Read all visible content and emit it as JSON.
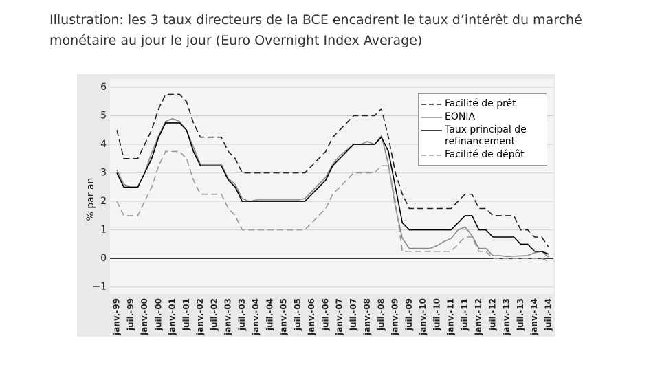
{
  "chart_data": {
    "type": "line",
    "title": "Illustration: les 3 taux directeurs de la BCE encadrent le taux d’intérêt du marché monétaire au jour le jour (Euro Overnight Index Average)",
    "ylabel": "% par an",
    "categories": [
      "janv.-99",
      null,
      "juil.-99",
      null,
      "janv.-00",
      null,
      "juil.-00",
      null,
      "janv.-01",
      null,
      "juil.-01",
      null,
      "janv.-02",
      null,
      "juil.-02",
      null,
      "janv.-03",
      null,
      "juil.-03",
      null,
      "janv.-04",
      null,
      "juil.-04",
      null,
      "janv.-05",
      null,
      "juil.-05",
      null,
      "janv.-06",
      null,
      "juil.-06",
      null,
      "janv.-07",
      null,
      "juil.-07",
      null,
      "janv.-08",
      null,
      "juil.-08",
      null,
      "janv.-09",
      null,
      "juil.-09",
      null,
      "janv.-10",
      null,
      "juil.-10",
      null,
      "janv.-11",
      null,
      "juil.-11",
      null,
      "janv.-12",
      null,
      "juil.-12",
      null,
      "janv.-13",
      null,
      "juil.-13",
      null,
      "janv.-14",
      null,
      "juil.-14"
    ],
    "series": [
      {
        "name": "Facilité de prêt",
        "color": "#222222",
        "line_style": "dashed",
        "values": [
          4.5,
          3.5,
          3.5,
          3.5,
          4,
          4.5,
          5.25,
          5.75,
          5.75,
          5.75,
          5.5,
          4.75,
          4.25,
          4.25,
          4.25,
          4.25,
          3.75,
          3.5,
          3,
          3,
          3,
          3,
          3,
          3,
          3,
          3,
          3,
          3,
          3.25,
          3.5,
          3.75,
          4.25,
          4.5,
          4.75,
          5,
          5,
          5,
          5,
          5.25,
          4.25,
          3,
          2.25,
          1.75,
          1.75,
          1.75,
          1.75,
          1.75,
          1.75,
          1.75,
          2,
          2.25,
          2.25,
          1.75,
          1.75,
          1.5,
          1.5,
          1.5,
          1.5,
          1,
          1,
          0.75,
          0.75,
          0.4
        ]
      },
      {
        "name": "EONIA",
        "color": "#8a8a8a",
        "line_style": "solid",
        "values": [
          3.1,
          2.6,
          2.5,
          2.5,
          3,
          3.7,
          4.3,
          4.8,
          4.9,
          4.8,
          4.5,
          3.9,
          3.3,
          3.3,
          3.3,
          3.3,
          2.8,
          2.6,
          2.1,
          2,
          2.05,
          2.05,
          2.05,
          2.05,
          2.05,
          2.05,
          2.05,
          2.1,
          2.35,
          2.6,
          2.85,
          3.3,
          3.6,
          3.8,
          4,
          4,
          4.1,
          4,
          4.3,
          3.3,
          1.8,
          0.7,
          0.35,
          0.35,
          0.35,
          0.35,
          0.45,
          0.6,
          0.7,
          1,
          1.1,
          0.8,
          0.35,
          0.35,
          0.1,
          0.1,
          0.07,
          0.08,
          0.09,
          0.1,
          0.2,
          0.25,
          0.05
        ]
      },
      {
        "name": "Taux principal de refinancement",
        "color": "#000000",
        "line_style": "solid",
        "values": [
          3,
          2.5,
          2.5,
          2.5,
          3,
          3.5,
          4.25,
          4.75,
          4.75,
          4.75,
          4.5,
          3.75,
          3.25,
          3.25,
          3.25,
          3.25,
          2.75,
          2.5,
          2,
          2,
          2,
          2,
          2,
          2,
          2,
          2,
          2,
          2,
          2.25,
          2.5,
          2.75,
          3.25,
          3.5,
          3.75,
          4,
          4,
          4,
          4,
          4.25,
          3.75,
          2.5,
          1.25,
          1,
          1,
          1,
          1,
          1,
          1,
          1,
          1.25,
          1.5,
          1.5,
          1,
          1,
          0.75,
          0.75,
          0.75,
          0.75,
          0.5,
          0.5,
          0.25,
          0.25,
          0.15
        ]
      },
      {
        "name": "Facilité de dépôt",
        "color": "#9a9a9a",
        "line_style": "dashed",
        "values": [
          2,
          1.5,
          1.5,
          1.5,
          2,
          2.5,
          3.25,
          3.75,
          3.75,
          3.75,
          3.5,
          2.75,
          2.25,
          2.25,
          2.25,
          2.25,
          1.75,
          1.5,
          1,
          1,
          1,
          1,
          1,
          1,
          1,
          1,
          1,
          1,
          1.25,
          1.5,
          1.75,
          2.25,
          2.5,
          2.75,
          3,
          3,
          3,
          3,
          3.25,
          3.25,
          2,
          0.25,
          0.25,
          0.25,
          0.25,
          0.25,
          0.25,
          0.25,
          0.25,
          0.5,
          0.75,
          0.75,
          0.25,
          0.25,
          0,
          0,
          0,
          0,
          0,
          0,
          0,
          0,
          -0.1
        ]
      }
    ],
    "ylim": [
      -1.2,
      6.2
    ],
    "yticks": [
      6,
      5,
      4,
      3,
      2,
      1,
      0,
      {
        "value": -1,
        "label": "−1"
      }
    ],
    "grid": true,
    "legend": "top-right"
  }
}
